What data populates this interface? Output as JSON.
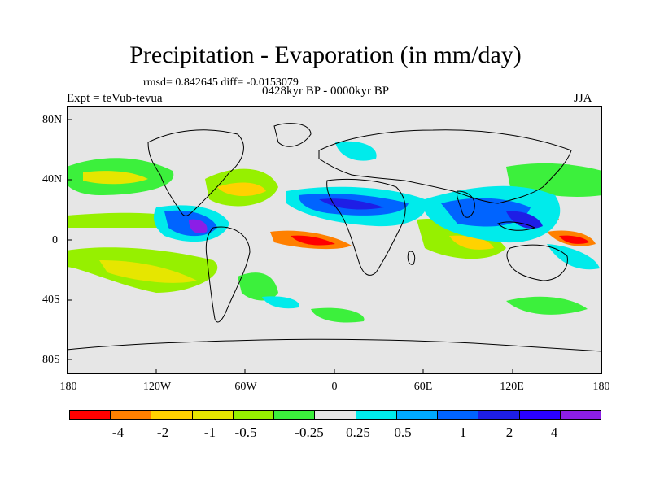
{
  "title": "Precipitation - Evaporation (in mm/day)",
  "stats": "rmsd= 0.842645 diff= -0.0153079",
  "expt": "Expt = teVub-tevua",
  "period": "0428kyr BP - 0000kyr BP",
  "season": "JJA",
  "lat_ticks": [
    "80N",
    "40N",
    "0",
    "40S",
    "80S"
  ],
  "lon_ticks": [
    "180",
    "120W",
    "60W",
    "0",
    "60E",
    "120E",
    "180"
  ],
  "colorbar": {
    "colors": [
      "#ff0000",
      "#ff8000",
      "#ffd200",
      "#e6e600",
      "#96f000",
      "#3cf03c",
      "#e6e6e6",
      "#00ebeb",
      "#00aaff",
      "#0064ff",
      "#1e1ee6",
      "#2a00ff",
      "#8c1ee6"
    ],
    "labels": [
      "-4",
      "-2",
      "-1",
      "-0.5",
      "-0.25",
      "0.25",
      "0.5",
      "1",
      "2",
      "4"
    ]
  }
}
